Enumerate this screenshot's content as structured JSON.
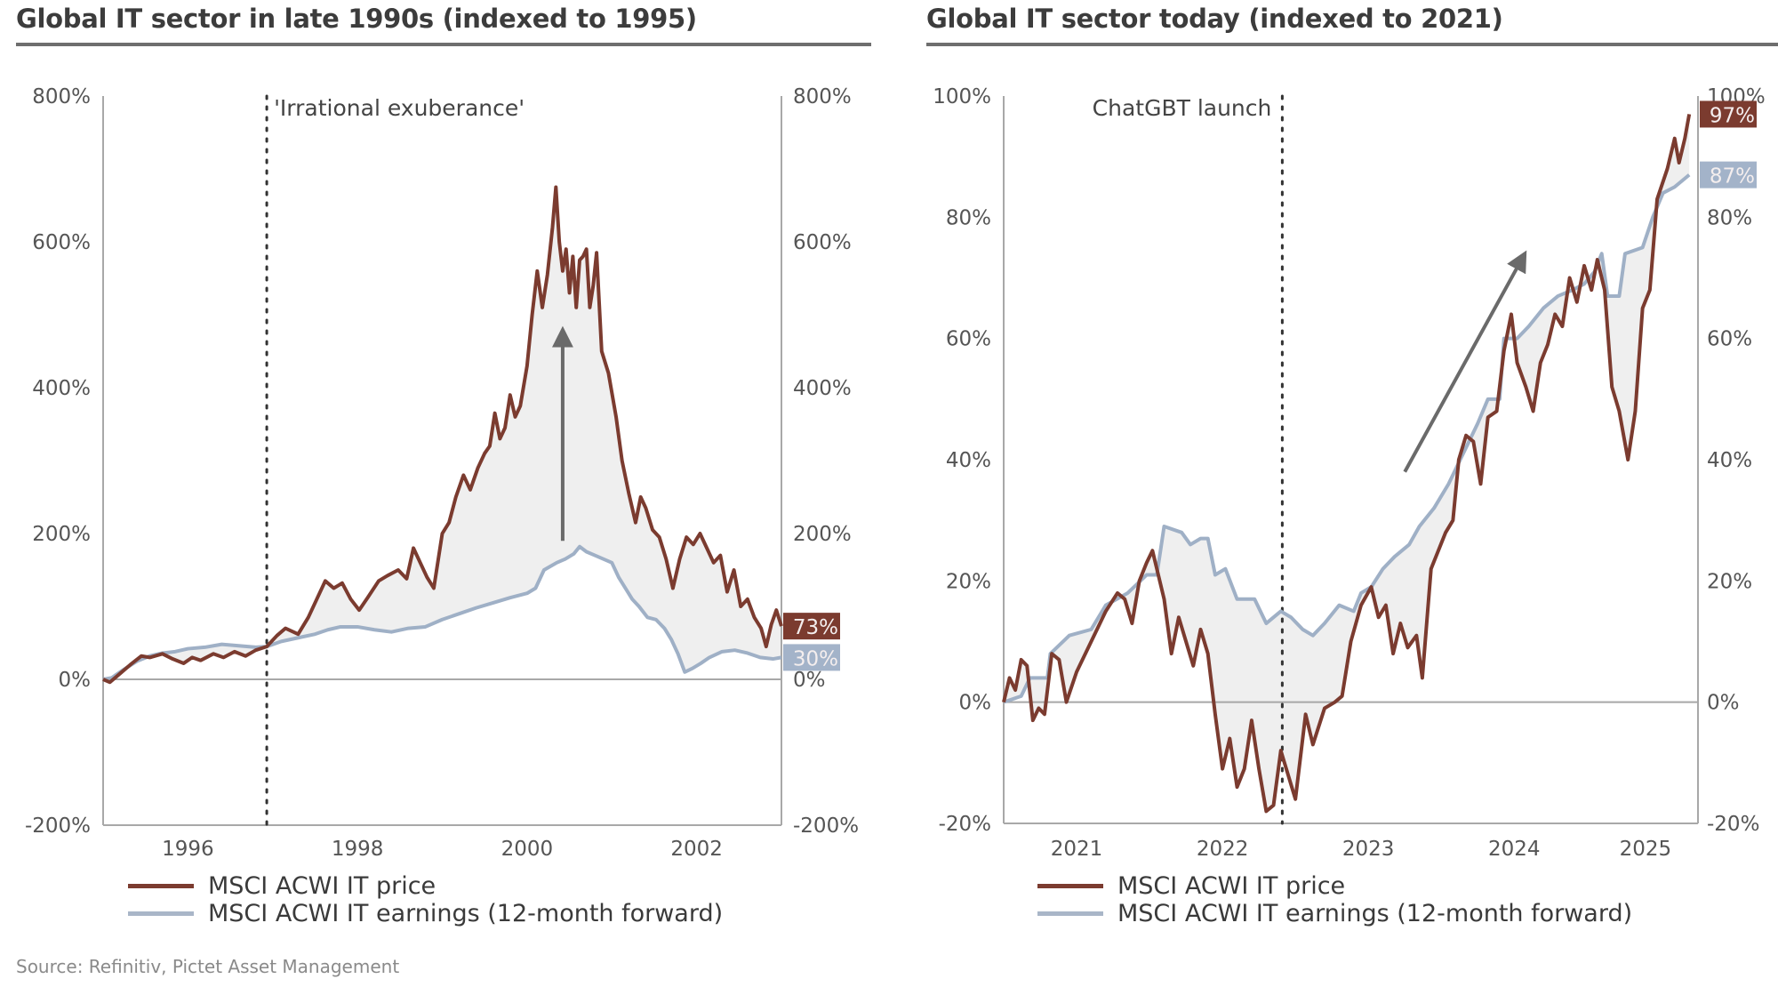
{
  "source": "Source: Refinitiv, Pictet Asset Management",
  "colors": {
    "price": "#7b3b2f",
    "earnings": "#9fb0c6",
    "fill": "#efefef",
    "axis": "#a8a8a8",
    "tick_text": "#555555",
    "arrow": "#6a6a6a"
  },
  "chart_data": [
    {
      "type": "line",
      "title": "Global IT sector in late 1990s (indexed to 1995)",
      "xlabel": "",
      "ylabel": "",
      "xlim": [
        1995.0,
        2003.0
      ],
      "ylim": [
        -200,
        800
      ],
      "yticks": [
        -200,
        0,
        200,
        400,
        600,
        800
      ],
      "ytick_labels": [
        "-200%",
        "0%",
        "200%",
        "400%",
        "600%",
        "800%"
      ],
      "xticks": [
        1996,
        1998,
        2000,
        2002
      ],
      "xtick_labels": [
        "1996",
        "1998",
        "2000",
        "2002"
      ],
      "grid": false,
      "annotation": {
        "text": "'Irrational exuberance'",
        "x": 1996.93,
        "style": "dotted vertical line"
      },
      "arrow": {
        "x": 2000.42,
        "from": 190,
        "to": 470,
        "direction": "up"
      },
      "end_labels": [
        {
          "series": "MSCI ACWI IT price",
          "text": "73%",
          "value": 73
        },
        {
          "series": "MSCI ACWI IT earnings (12-month forward)",
          "text": "30%",
          "value": 30
        }
      ],
      "legend": {
        "placement": "bottom-left"
      },
      "series": [
        {
          "name": "MSCI ACWI IT price",
          "key": "price",
          "x": [
            1995.0,
            1995.08,
            1995.2,
            1995.32,
            1995.45,
            1995.55,
            1995.7,
            1995.82,
            1995.95,
            1996.05,
            1996.15,
            1996.3,
            1996.42,
            1996.55,
            1996.68,
            1996.8,
            1996.93,
            1997.05,
            1997.15,
            1997.3,
            1997.42,
            1997.52,
            1997.62,
            1997.72,
            1997.82,
            1997.92,
            1998.02,
            1998.12,
            1998.25,
            1998.35,
            1998.48,
            1998.58,
            1998.66,
            1998.74,
            1998.82,
            1998.9,
            1999.0,
            1999.08,
            1999.16,
            1999.25,
            1999.33,
            1999.42,
            1999.5,
            1999.56,
            1999.62,
            1999.68,
            1999.74,
            1999.8,
            1999.86,
            1999.92,
            2000.0,
            2000.06,
            2000.12,
            2000.18,
            2000.24,
            2000.3,
            2000.34,
            2000.38,
            2000.42,
            2000.46,
            2000.5,
            2000.54,
            2000.58,
            2000.62,
            2000.66,
            2000.7,
            2000.74,
            2000.78,
            2000.82,
            2000.88,
            2000.96,
            2001.05,
            2001.12,
            2001.2,
            2001.28,
            2001.34,
            2001.4,
            2001.48,
            2001.56,
            2001.64,
            2001.72,
            2001.8,
            2001.88,
            2001.96,
            2002.04,
            2002.12,
            2002.2,
            2002.28,
            2002.36,
            2002.44,
            2002.52,
            2002.6,
            2002.68,
            2002.76,
            2002.82,
            2002.88,
            2002.94,
            2003.0
          ],
          "values": [
            0,
            -4,
            8,
            20,
            32,
            30,
            35,
            28,
            22,
            30,
            26,
            35,
            30,
            38,
            32,
            40,
            45,
            60,
            70,
            62,
            85,
            110,
            135,
            125,
            132,
            110,
            95,
            112,
            135,
            142,
            150,
            138,
            180,
            160,
            140,
            125,
            200,
            215,
            250,
            280,
            260,
            290,
            310,
            320,
            365,
            330,
            345,
            390,
            360,
            375,
            430,
            500,
            560,
            510,
            555,
            620,
            675,
            600,
            560,
            590,
            530,
            580,
            510,
            575,
            580,
            590,
            510,
            540,
            585,
            450,
            420,
            360,
            300,
            255,
            215,
            250,
            235,
            205,
            195,
            165,
            125,
            165,
            195,
            185,
            200,
            180,
            160,
            170,
            120,
            150,
            100,
            110,
            85,
            70,
            45,
            75,
            95,
            73
          ],
          "color_key": "price"
        },
        {
          "name": "MSCI ACWI IT earnings (12-month forward)",
          "key": "earnings",
          "x": [
            1995.0,
            1995.1,
            1995.25,
            1995.4,
            1995.55,
            1995.7,
            1995.85,
            1996.0,
            1996.2,
            1996.4,
            1996.6,
            1996.8,
            1996.93,
            1997.1,
            1997.3,
            1997.5,
            1997.65,
            1997.8,
            1998.0,
            1998.2,
            1998.4,
            1998.6,
            1998.8,
            1999.0,
            1999.2,
            1999.4,
            1999.6,
            1999.8,
            2000.0,
            2000.1,
            2000.2,
            2000.35,
            2000.45,
            2000.55,
            2000.62,
            2000.7,
            2000.8,
            2000.9,
            2001.0,
            2001.08,
            2001.16,
            2001.24,
            2001.32,
            2001.42,
            2001.52,
            2001.62,
            2001.7,
            2001.78,
            2001.86,
            2001.95,
            2002.05,
            2002.15,
            2002.3,
            2002.45,
            2002.6,
            2002.75,
            2002.9,
            2003.0
          ],
          "values": [
            0,
            2,
            14,
            25,
            32,
            36,
            38,
            42,
            44,
            48,
            46,
            44,
            45,
            52,
            57,
            62,
            68,
            72,
            72,
            68,
            65,
            70,
            72,
            82,
            90,
            98,
            105,
            112,
            118,
            125,
            150,
            160,
            165,
            172,
            182,
            175,
            170,
            165,
            160,
            140,
            125,
            110,
            100,
            85,
            82,
            70,
            55,
            35,
            10,
            15,
            22,
            30,
            38,
            40,
            36,
            30,
            28,
            30
          ],
          "color_key": "earnings"
        }
      ]
    },
    {
      "type": "line",
      "title": "Global IT sector today (indexed to 2021)",
      "xlabel": "",
      "ylabel": "",
      "xlim": [
        2021.0,
        2025.76
      ],
      "ylim": [
        -20,
        100
      ],
      "yticks": [
        -20,
        0,
        20,
        40,
        60,
        80,
        100
      ],
      "ytick_labels": [
        "-20%",
        "0%",
        "20%",
        "40%",
        "60%",
        "80%",
        "100%"
      ],
      "xticks": [
        2021.5,
        2022.5,
        2023.5,
        2024.5,
        2025.4
      ],
      "xtick_labels": [
        "2021",
        "2022",
        "2023",
        "2024",
        "2025"
      ],
      "grid": false,
      "annotation": {
        "text": "ChatGBT launch",
        "x": 2022.91,
        "style": "dotted vertical line"
      },
      "arrow": {
        "x_from": 2023.75,
        "y_from": 38,
        "x_to": 2024.55,
        "y_to": 73,
        "direction": "up-right"
      },
      "end_labels": [
        {
          "series": "MSCI ACWI IT price",
          "text": "97%",
          "value": 97
        },
        {
          "series": "MSCI ACWI IT earnings (12-month forward)",
          "text": "87%",
          "value": 87
        }
      ],
      "legend": {
        "placement": "bottom-left"
      },
      "series": [
        {
          "name": "MSCI ACWI IT price",
          "key": "price",
          "x": [
            2021.0,
            2021.04,
            2021.08,
            2021.12,
            2021.16,
            2021.2,
            2021.24,
            2021.28,
            2021.33,
            2021.38,
            2021.43,
            2021.5,
            2021.6,
            2021.7,
            2021.78,
            2021.83,
            2021.88,
            2021.93,
            2021.98,
            2022.02,
            2022.05,
            2022.1,
            2022.15,
            2022.2,
            2022.25,
            2022.3,
            2022.35,
            2022.4,
            2022.45,
            2022.5,
            2022.55,
            2022.6,
            2022.65,
            2022.7,
            2022.75,
            2022.8,
            2022.85,
            2022.9,
            2022.95,
            2023.0,
            2023.07,
            2023.12,
            2023.2,
            2023.27,
            2023.32,
            2023.38,
            2023.45,
            2023.52,
            2023.57,
            2023.62,
            2023.67,
            2023.72,
            2023.77,
            2023.83,
            2023.87,
            2023.93,
            2023.98,
            2024.03,
            2024.08,
            2024.12,
            2024.17,
            2024.22,
            2024.27,
            2024.32,
            2024.38,
            2024.43,
            2024.48,
            2024.52,
            2024.58,
            2024.63,
            2024.68,
            2024.73,
            2024.78,
            2024.83,
            2024.88,
            2024.93,
            2024.98,
            2025.03,
            2025.07,
            2025.12,
            2025.17,
            2025.22,
            2025.28,
            2025.33,
            2025.38,
            2025.43,
            2025.48,
            2025.55,
            2025.6,
            2025.63,
            2025.67,
            2025.7
          ],
          "values": [
            0,
            4,
            2,
            7,
            6,
            -3,
            -1,
            -2,
            8,
            7,
            0,
            5,
            10,
            15,
            18,
            17,
            13,
            20,
            23,
            25,
            22,
            17,
            8,
            14,
            10,
            6,
            12,
            8,
            -2,
            -11,
            -6,
            -14,
            -11,
            -3,
            -11,
            -18,
            -17,
            -8,
            -12,
            -16,
            -2,
            -7,
            -1,
            0,
            1,
            10,
            16,
            19,
            14,
            16,
            8,
            13,
            9,
            11,
            4,
            22,
            25,
            28,
            30,
            40,
            44,
            43,
            36,
            47,
            48,
            58,
            64,
            56,
            52,
            48,
            56,
            59,
            64,
            62,
            70,
            66,
            72,
            68,
            73,
            68,
            52,
            48,
            40,
            48,
            65,
            68,
            83,
            88,
            93,
            89,
            93,
            97
          ],
          "color_key": "price"
        },
        {
          "name": "MSCI ACWI IT earnings (12-month forward)",
          "key": "earnings",
          "x": [
            2021.0,
            2021.12,
            2021.18,
            2021.3,
            2021.32,
            2021.45,
            2021.6,
            2021.7,
            2021.85,
            2021.98,
            2022.05,
            2022.1,
            2022.22,
            2022.28,
            2022.35,
            2022.4,
            2022.45,
            2022.52,
            2022.6,
            2022.72,
            2022.8,
            2022.9,
            2022.97,
            2023.05,
            2023.12,
            2023.2,
            2023.3,
            2023.4,
            2023.45,
            2023.52,
            2023.6,
            2023.68,
            2023.78,
            2023.85,
            2023.95,
            2024.05,
            2024.15,
            2024.25,
            2024.32,
            2024.4,
            2024.43,
            2024.52,
            2024.6,
            2024.7,
            2024.8,
            2024.9,
            2024.98,
            2025.05,
            2025.1,
            2025.14,
            2025.22,
            2025.26,
            2025.38,
            2025.45,
            2025.52,
            2025.6,
            2025.7
          ],
          "values": [
            0,
            1,
            4,
            4,
            8,
            11,
            12,
            16,
            18,
            21,
            21,
            29,
            28,
            26,
            27,
            27,
            21,
            22,
            17,
            17,
            13,
            15,
            14,
            12,
            11,
            13,
            16,
            15,
            18,
            19,
            22,
            24,
            26,
            29,
            32,
            36,
            41,
            46,
            50,
            50,
            60,
            60,
            62,
            65,
            67,
            68,
            69,
            71,
            74,
            67,
            67,
            74,
            75,
            80,
            84,
            85,
            87
          ],
          "color_key": "earnings"
        }
      ]
    }
  ]
}
